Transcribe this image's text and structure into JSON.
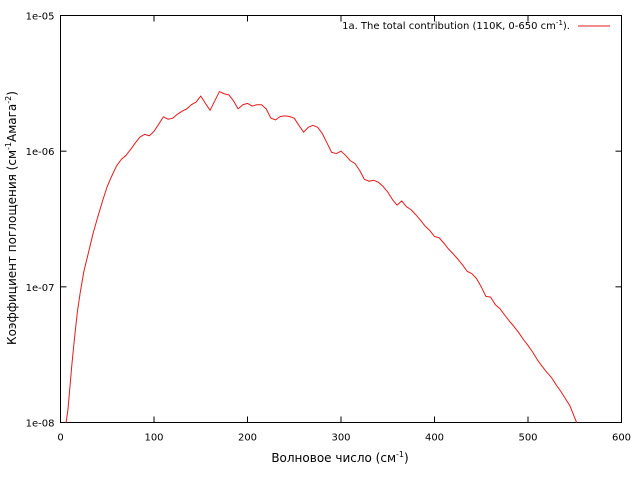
{
  "chart_data": {
    "type": "line",
    "x_scale": "linear",
    "y_scale": "log",
    "xlim": [
      0,
      600
    ],
    "ylim": [
      1e-08,
      1e-05
    ],
    "x_ticks": [
      0,
      100,
      200,
      300,
      400,
      500,
      600
    ],
    "x_tick_labels": [
      "0",
      "100",
      "200",
      "300",
      "400",
      "500",
      "600"
    ],
    "y_ticks": [
      1e-08,
      1e-07,
      1e-06,
      1e-05
    ],
    "y_tick_labels": [
      "1e-08",
      "1e-07",
      "1e-06",
      "1e-05"
    ],
    "xlabel": {
      "main": "Волновое число (см",
      "sup": "-1",
      "tail": ")"
    },
    "ylabel": {
      "main": "Коэффициент поглощения (см",
      "sup1": "-1",
      "mid": "Амага",
      "sup2": "-2",
      "tail": ")"
    },
    "grid": false,
    "legend_position": "top-right",
    "series": [
      {
        "name": {
          "main": "1a. The total contribution (110K, 0-650 cm",
          "sup": "-1",
          "tail": ")."
        },
        "color": "#e41a1c",
        "x": [
          6,
          8,
          10,
          12,
          15,
          18,
          21,
          25,
          30,
          35,
          40,
          45,
          50,
          55,
          60,
          65,
          70,
          75,
          80,
          85,
          90,
          95,
          100,
          105,
          110,
          115,
          120,
          125,
          130,
          135,
          140,
          145,
          150,
          155,
          160,
          165,
          170,
          175,
          180,
          185,
          190,
          195,
          200,
          205,
          210,
          215,
          220,
          225,
          230,
          235,
          240,
          245,
          250,
          255,
          260,
          265,
          270,
          275,
          280,
          285,
          290,
          295,
          300,
          305,
          310,
          315,
          320,
          325,
          330,
          335,
          340,
          345,
          350,
          355,
          360,
          365,
          370,
          375,
          380,
          385,
          390,
          395,
          400,
          405,
          410,
          415,
          420,
          425,
          430,
          435,
          440,
          445,
          450,
          455,
          460,
          465,
          470,
          475,
          480,
          485,
          490,
          495,
          500,
          505,
          510,
          515,
          520,
          525,
          530,
          535,
          540,
          545,
          550,
          552
        ],
        "y": [
          9.9e-09,
          1.25e-08,
          1.8e-08,
          2.6e-08,
          4.2e-08,
          6.5e-08,
          9e-08,
          1.3e-07,
          1.8e-07,
          2.5e-07,
          3.3e-07,
          4.3e-07,
          5.5e-07,
          6.6e-07,
          7.8e-07,
          8.7e-07,
          9.3e-07,
          1.03e-06,
          1.15e-06,
          1.27e-06,
          1.33e-06,
          1.3e-06,
          1.4e-06,
          1.58e-06,
          1.79e-06,
          1.72e-06,
          1.75e-06,
          1.87e-06,
          1.97e-06,
          2.05e-06,
          2.2e-06,
          2.3e-06,
          2.55e-06,
          2.25e-06,
          2e-06,
          2.35e-06,
          2.75e-06,
          2.65e-06,
          2.6e-06,
          2.35e-06,
          2.05e-06,
          2.2e-06,
          2.25e-06,
          2.15e-06,
          2.2e-06,
          2.2e-06,
          2.05e-06,
          1.75e-06,
          1.7e-06,
          1.8e-06,
          1.82e-06,
          1.8e-06,
          1.75e-06,
          1.55e-06,
          1.38e-06,
          1.5e-06,
          1.55e-06,
          1.5e-06,
          1.35e-06,
          1.15e-06,
          9.8e-07,
          9.6e-07,
          1e-06,
          9.3e-07,
          8.5e-07,
          8.1e-07,
          7.2e-07,
          6.2e-07,
          6e-07,
          6.1e-07,
          5.9e-07,
          5.5e-07,
          5e-07,
          4.4e-07,
          4e-07,
          4.3e-07,
          3.9e-07,
          3.7e-07,
          3.4e-07,
          3.1e-07,
          2.8e-07,
          2.6e-07,
          2.35e-07,
          2.3e-07,
          2.1e-07,
          1.9e-07,
          1.75e-07,
          1.6e-07,
          1.45e-07,
          1.3e-07,
          1.25e-07,
          1.15e-07,
          1e-07,
          8.5e-08,
          8.4e-08,
          7.4e-08,
          6.9e-08,
          6.2e-08,
          5.6e-08,
          5.1e-08,
          4.6e-08,
          4.1e-08,
          3.7e-08,
          3.3e-08,
          2.9e-08,
          2.6e-08,
          2.35e-08,
          2.15e-08,
          1.9e-08,
          1.7e-08,
          1.5e-08,
          1.32e-08,
          1.08e-08,
          1e-08
        ]
      }
    ]
  }
}
